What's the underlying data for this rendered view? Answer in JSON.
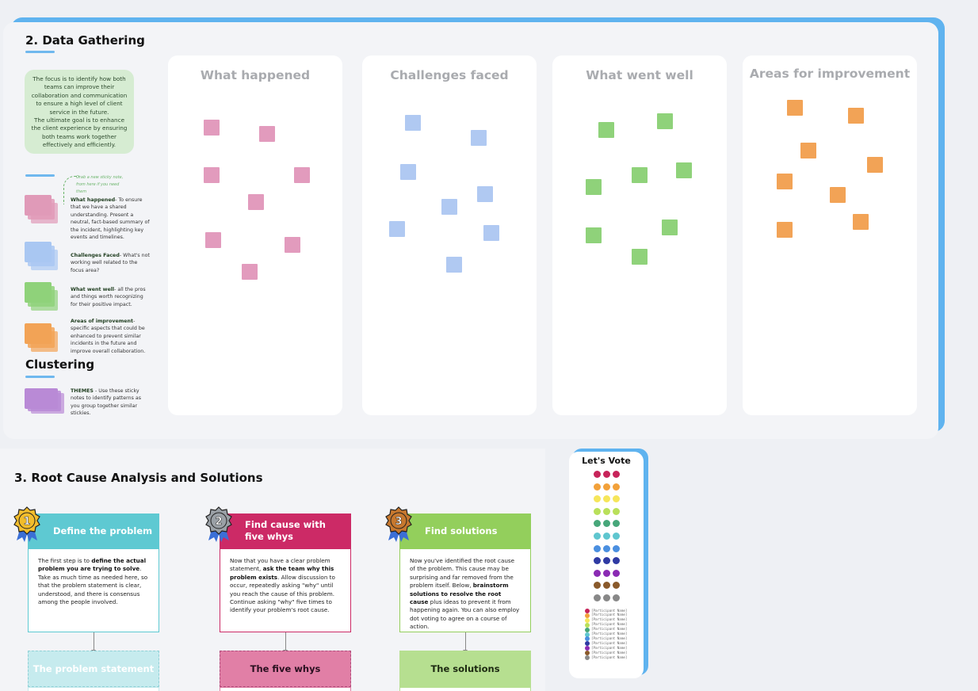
{
  "section2": {
    "title": "2. Data Gathering",
    "intro": "The focus is to identify how both teams can improve their collaboration and communication to ensure a high level of client service in the future.\nThe ultimate goal is to enhance the client experience by ensuring both teams work together effectively and efficiently.",
    "hint": "Grab a new sticky note, from here if you need them",
    "legend": [
      {
        "bold": "What happened",
        "text": "- To ensure that we have a shared understanding. Present a neutral, fact-based summary of the incident, highlighting key events and timelines.",
        "color": "#e09ab8"
      },
      {
        "bold": "Challenges Faced",
        "text": "- What's not working well related to the focus area?",
        "color": "#a9c7f2"
      },
      {
        "bold": "What went well",
        "text": "- all the pros and things worth recognizing for their positive impact.",
        "color": "#8fd27a"
      },
      {
        "bold": "Areas of improvement",
        "text": "- specific aspects that could be enhanced to prevent similar incidents in the future and improve overall collaboration.",
        "color": "#f2a356"
      }
    ],
    "clustering": {
      "title": "Clustering",
      "bold": "THEMES",
      "text": " - Use these sticky notes to identify patterns as you group together similar stickies.",
      "color": "#b98ad6"
    },
    "columns": [
      {
        "title": "What happened",
        "color": "#e29bbd"
      },
      {
        "title": "Challenges faced",
        "color": "#b0c9f2"
      },
      {
        "title": "What went well",
        "color": "#8fd27a"
      },
      {
        "title": "Areas for improvement",
        "color": "#f2a356"
      }
    ]
  },
  "section3": {
    "title": "3. Root Cause Analysis and Solutions",
    "steps": [
      {
        "number": "1",
        "head": "Define the problem",
        "head_color": "#5ec9d2",
        "medal_color": "#f2bd2c",
        "body_pre": "The first step is to ",
        "body_bold": "define the actual problem you are trying to solve",
        "body_post": ". Take as much time as needed here, so that the problem statement is clear, understood, and there is consensus among the people involved.",
        "sub": "The problem statement",
        "sub_color": "#c6ebee",
        "sub_text_color": "#ffffff"
      },
      {
        "number": "2",
        "head": "Find cause with five whys",
        "head_color": "#cc2a66",
        "medal_color": "#9aa0a6",
        "body_pre": "Now that you have a clear problem statement, ",
        "body_bold": "ask the team why this problem exists",
        "body_post": ". Allow discussion to occur, repeatedly asking \"why\" until you reach the cause of this problem. Continue asking \"why\" five times to identify your problem's root cause.",
        "sub": "The five whys",
        "sub_color": "#e17fa6",
        "sub_text_color": "#2a1020"
      },
      {
        "number": "3",
        "head": "Find solutions",
        "head_color": "#93cf5c",
        "medal_color": "#c7782e",
        "body_pre": "Now you've identified the root cause of the problem. This cause may be surprising and far removed from the problem itself. Below, ",
        "body_bold": "brainstorm solutions to resolve the root cause",
        "body_post": " plus ideas to prevent it from happening again. You can also employ dot voting to agree on a course of action.",
        "sub": "The solutions",
        "sub_color": "#b6df90",
        "sub_text_color": "#1d2a12"
      }
    ]
  },
  "vote": {
    "title": "Let's Vote",
    "colors": [
      "#c7245a",
      "#f2a13a",
      "#f6e65a",
      "#b9e05a",
      "#47a77a",
      "#5fc6cf",
      "#4a8fe0",
      "#2f3aa3",
      "#8a2ab3",
      "#8a5a2b",
      "#888888"
    ],
    "participant_label": "[Participant Name]"
  }
}
